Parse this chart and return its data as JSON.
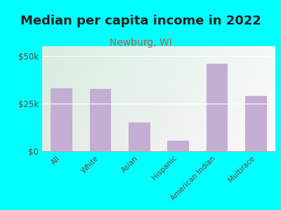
{
  "title": "Median per capita income in 2022",
  "subtitle": "Newburg, WI",
  "categories": [
    "All",
    "White",
    "Asian",
    "Hispanic",
    "American Indian",
    "Multirace"
  ],
  "values": [
    33000,
    32500,
    15000,
    5500,
    46000,
    29000
  ],
  "bar_color": "#c4aed4",
  "title_fontsize": 13,
  "title_color": "#222222",
  "subtitle_fontsize": 10,
  "subtitle_color": "#cc5533",
  "tick_label_color": "#664444",
  "background_outer": "#00FFFF",
  "ylim": [
    0,
    55000
  ],
  "yticks": [
    0,
    25000,
    50000
  ],
  "ytick_labels": [
    "$0",
    "$25k",
    "$50k"
  ],
  "grad_colors": [
    "#d8eedd",
    "#f2f5e8",
    "#eef5e2",
    "#f8f8ee"
  ],
  "grid_color": "#cccccc"
}
